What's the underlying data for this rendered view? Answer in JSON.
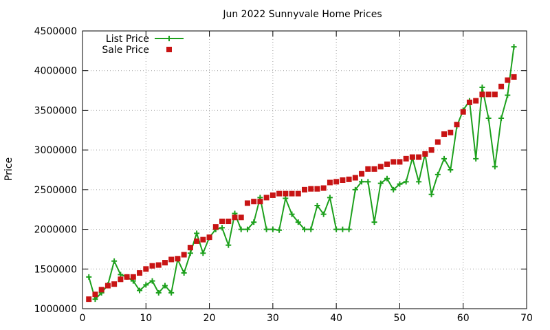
{
  "chart_data": {
    "type": "line",
    "title": "Jun 2022 Sunnyvale Home Prices",
    "xlabel": "",
    "ylabel": "Price",
    "xlim": [
      0,
      70
    ],
    "ylim": [
      1000000,
      4500000
    ],
    "x_ticks": [
      0,
      10,
      20,
      30,
      40,
      50,
      60,
      70
    ],
    "y_ticks": [
      1000000,
      1500000,
      2000000,
      2500000,
      3000000,
      3500000,
      4000000,
      4500000
    ],
    "grid": true,
    "legend_position": "top-left",
    "series": [
      {
        "name": "List Price",
        "style": "line-plus",
        "color": "#1ca01c",
        "x": [
          1,
          2,
          3,
          4,
          5,
          6,
          7,
          8,
          9,
          10,
          11,
          12,
          13,
          14,
          15,
          16,
          17,
          18,
          19,
          20,
          21,
          22,
          23,
          24,
          25,
          26,
          27,
          28,
          29,
          30,
          31,
          32,
          33,
          34,
          35,
          36,
          37,
          38,
          39,
          40,
          41,
          42,
          43,
          44,
          45,
          46,
          47,
          48,
          49,
          50,
          51,
          52,
          53,
          54,
          55,
          56,
          57,
          58,
          59,
          60,
          61,
          62,
          63,
          64,
          65,
          66,
          67,
          68
        ],
        "values": [
          1400000,
          1120000,
          1200000,
          1300000,
          1600000,
          1430000,
          1400000,
          1350000,
          1230000,
          1300000,
          1350000,
          1200000,
          1290000,
          1200000,
          1620000,
          1450000,
          1700000,
          1950000,
          1700000,
          1900000,
          2000000,
          2020000,
          1800000,
          2200000,
          2000000,
          2000000,
          2090000,
          2400000,
          2000000,
          2000000,
          1990000,
          2390000,
          2190000,
          2090000,
          2000000,
          2000000,
          2300000,
          2190000,
          2400000,
          2000000,
          2000000,
          2000000,
          2500000,
          2600000,
          2600000,
          2090000,
          2580000,
          2640000,
          2500000,
          2570000,
          2600000,
          2900000,
          2600000,
          2950000,
          2440000,
          2690000,
          2890000,
          2750000,
          3300000,
          3500000,
          3620000,
          2890000,
          3790000,
          3400000,
          2790000,
          3400000,
          3690000,
          4300000
        ]
      },
      {
        "name": "Sale Price",
        "style": "square-points",
        "color": "#c81414",
        "x": [
          1,
          2,
          3,
          4,
          5,
          6,
          7,
          8,
          9,
          10,
          11,
          12,
          13,
          14,
          15,
          16,
          17,
          18,
          19,
          20,
          21,
          22,
          23,
          24,
          25,
          26,
          27,
          28,
          29,
          30,
          31,
          32,
          33,
          34,
          35,
          36,
          37,
          38,
          39,
          40,
          41,
          42,
          43,
          44,
          45,
          46,
          47,
          48,
          49,
          50,
          51,
          52,
          53,
          54,
          55,
          56,
          57,
          58,
          59,
          60,
          61,
          62,
          63,
          64,
          65,
          66,
          67,
          68
        ],
        "values": [
          1120000,
          1180000,
          1240000,
          1290000,
          1310000,
          1370000,
          1400000,
          1400000,
          1450000,
          1500000,
          1540000,
          1550000,
          1580000,
          1620000,
          1630000,
          1680000,
          1770000,
          1850000,
          1870000,
          1900000,
          2030000,
          2100000,
          2100000,
          2150000,
          2150000,
          2330000,
          2350000,
          2350000,
          2400000,
          2430000,
          2450000,
          2450000,
          2450000,
          2450000,
          2500000,
          2510000,
          2510000,
          2520000,
          2590000,
          2600000,
          2620000,
          2630000,
          2650000,
          2700000,
          2760000,
          2760000,
          2790000,
          2820000,
          2850000,
          2850000,
          2890000,
          2910000,
          2910000,
          2950000,
          3000000,
          3100000,
          3200000,
          3220000,
          3320000,
          3480000,
          3600000,
          3620000,
          3700000,
          3700000,
          3700000,
          3800000,
          3880000,
          3920000
        ]
      }
    ]
  }
}
